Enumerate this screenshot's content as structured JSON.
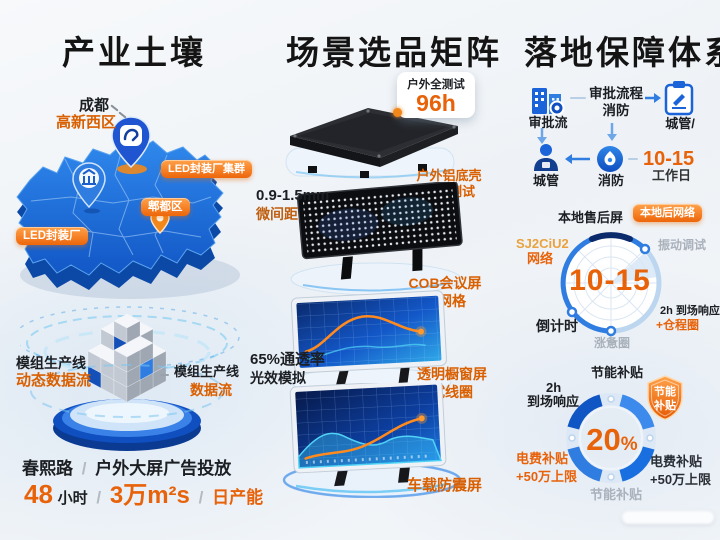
{
  "colors": {
    "accent_orange": "#e8620a",
    "brand_blue": "#1a6fe0",
    "badge_orange": "#ee660a",
    "dark_text": "#1b1e22",
    "grey_label": "#a9b1bb"
  },
  "left": {
    "title": "产业土壤",
    "map": {
      "city": "成都",
      "district": "高新西区",
      "cluster_badge": "LED封装厂集群",
      "area_badge": "郫都区",
      "factory_badge": "LED封装厂"
    },
    "platform": {
      "left_line1": "模组生产线",
      "left_line2": "动态数据流",
      "right_line1": "模组生产线",
      "right_line2": "数据流"
    },
    "stats": {
      "place": "春熙路",
      "sep1": "/",
      "campaign": "户外大屏广告投放",
      "num_hours": "48",
      "unit_hours": "小时",
      "sep2": "/",
      "area_value": "3万m²s",
      "sep3": "/",
      "capacity": "日产能"
    }
  },
  "middle": {
    "title": "场景选品矩阵",
    "test_badge": {
      "label": "户外全测试",
      "value": "96h"
    },
    "salt_label": {
      "line1": "户外铝底壳",
      "line2": "盐雾测试"
    },
    "pitch_label": {
      "line1": "0.9-1.5mm",
      "line2": "微间距"
    },
    "cob_label": {
      "line1": "COB会议屏",
      "line2": "网网格"
    },
    "transparency_label": {
      "line1": "65%通透率",
      "line2": "光效模拟"
    },
    "window_label": {
      "line1": "透明橱窗屏",
      "line2": "试线圈"
    },
    "vehicle_label": "车载防震屏"
  },
  "right": {
    "title": "落地保障体系",
    "flow": {
      "approval": "审批流",
      "process_line1": "审批流程",
      "process_line2": "消防",
      "clipboard": "城管/",
      "person": "城管",
      "fire": "消防",
      "duration": "10-15",
      "duration_unit": "工作日"
    },
    "radar": {
      "top_label": "本地售后屏",
      "badge": "本地后网络",
      "right_label": "振动调试",
      "left_label1": "SJ2CiU2",
      "left_label2": "网络",
      "center": "10-15",
      "bottom_left": "倒计时",
      "bottom_label": "涨惫圈",
      "response_label": "2h 到场响应",
      "response_extra": "+仓程圈"
    },
    "donut": {
      "top_label": "节能补贴",
      "left_line1": "2h",
      "left_line2": "到场响应",
      "shield_line1": "节能",
      "shield_line2": "补贴",
      "center_value": "20",
      "center_unit": "%",
      "left_orange1": "电费补贴",
      "left_orange2": "+50万上限",
      "right_line1": "电费补贴",
      "right_line2": "+50万上限",
      "bottom_label": "节能补贴"
    }
  }
}
